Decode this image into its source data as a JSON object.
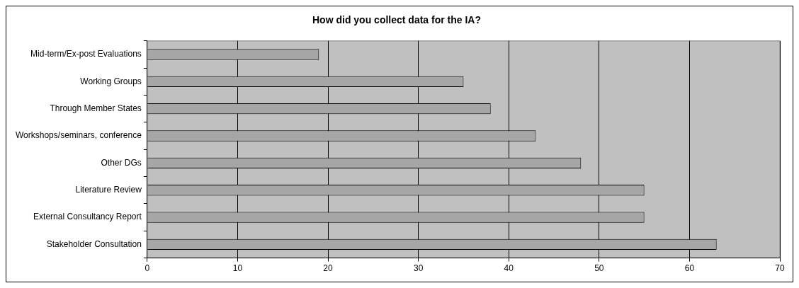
{
  "chart_data": {
    "type": "bar",
    "orientation": "horizontal",
    "title": "How did you collect data for the IA?",
    "categories": [
      "Mid-term/Ex-post Evaluations",
      "Working Groups",
      "Through Member States",
      "Workshops/seminars, conference",
      "Other DGs",
      "Literature Review",
      "External Consultancy Report",
      "Stakeholder Consultation"
    ],
    "values": [
      19,
      35,
      38,
      43,
      48,
      55,
      55,
      63
    ],
    "color": "#a6a6a6",
    "xlim": [
      0,
      70
    ],
    "xticks": [
      0,
      10,
      20,
      30,
      40,
      50,
      60,
      70
    ],
    "grid": "x",
    "legend": false
  }
}
